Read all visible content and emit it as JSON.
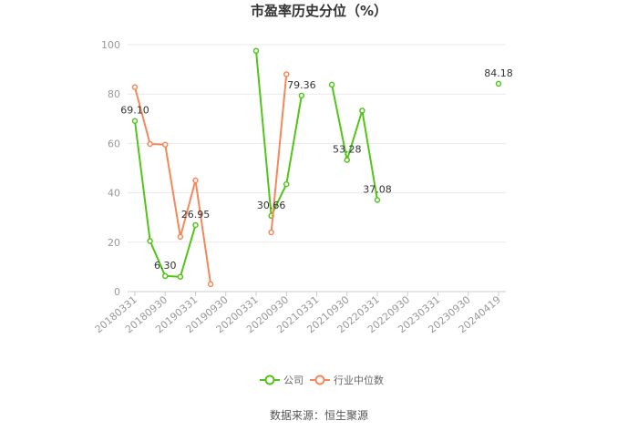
{
  "chart_data": {
    "type": "line",
    "title": "市盈率历史分位（%）",
    "xlabel": "",
    "ylabel": "",
    "ylim": [
      0,
      100
    ],
    "yticks": [
      0,
      20,
      40,
      60,
      80,
      100
    ],
    "grid": "horizontal",
    "legend_position": "bottom-center",
    "categories": [
      "20180331",
      "20180630",
      "20180930",
      "20181231",
      "20190331",
      "20190630",
      "20190930",
      "20191231",
      "20200331",
      "20200630",
      "20200930",
      "20201231",
      "20210331",
      "20210630",
      "20210930",
      "20211231",
      "20220331",
      "20220630",
      "20220930",
      "20221231",
      "20230331",
      "20230630",
      "20230930",
      "20231231",
      "20240419"
    ],
    "tick_labels": [
      "20180331",
      "20180930",
      "20190331",
      "20190930",
      "20200331",
      "20200930",
      "20210331",
      "20210930",
      "20220331",
      "20220930",
      "20230331",
      "20230930",
      "20240419"
    ],
    "series": [
      {
        "name": "公司",
        "color": "#52c41a",
        "values": [
          69.1,
          20.5,
          6.3,
          6.0,
          26.95,
          null,
          null,
          null,
          97.5,
          30.66,
          43.5,
          79.36,
          null,
          83.8,
          53.28,
          73.3,
          37.08,
          null,
          null,
          null,
          null,
          null,
          null,
          null,
          84.18
        ],
        "labels": [
          {
            "index": 0,
            "text": "69.10"
          },
          {
            "index": 2,
            "text": "6.30"
          },
          {
            "index": 4,
            "text": "26.95"
          },
          {
            "index": 9,
            "text": "30.66"
          },
          {
            "index": 11,
            "text": "79.36"
          },
          {
            "index": 14,
            "text": "53.28"
          },
          {
            "index": 16,
            "text": "37.08"
          },
          {
            "index": 24,
            "text": "84.18"
          }
        ]
      },
      {
        "name": "行业中位数",
        "color": "#f5875a",
        "values": [
          82.8,
          59.8,
          59.5,
          22.2,
          45.0,
          3.0,
          null,
          null,
          null,
          24.0,
          88.0,
          null,
          null,
          null,
          null,
          null,
          null,
          null,
          null,
          null,
          null,
          null,
          null,
          null,
          null
        ],
        "labels": []
      }
    ]
  },
  "source": "数据来源：恒生聚源"
}
